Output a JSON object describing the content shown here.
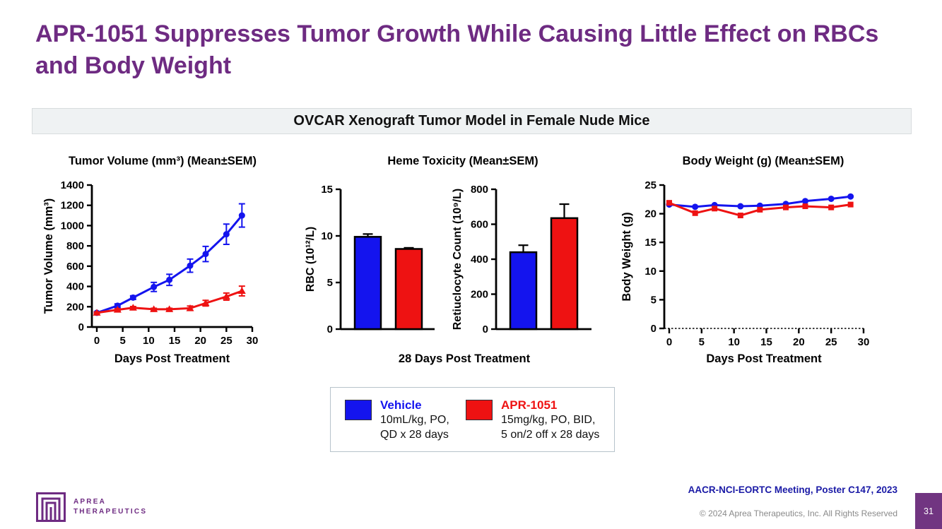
{
  "slide": {
    "title": "APR-1051 Suppresses Tumor Growth While Causing Little Effect on RBCs and Body Weight",
    "banner": "OVCAR Xenograft Tumor Model in Female Nude Mice",
    "page_number": "31"
  },
  "footer": {
    "meeting": "AACR-NCI-EORTC Meeting, Poster C147, 2023",
    "copyright": "© 2024 Aprea Therapeutics, Inc. All Rights Reserved",
    "logo_line1": "APREA",
    "logo_line2": "THERAPEUTICS"
  },
  "colors": {
    "title_purple": "#6E2B82",
    "vehicle_blue": "#1414EE",
    "apr_red": "#EE1212",
    "meeting_navy": "#1A1AA6",
    "page_box_purple": "#713581",
    "banner_bg": "#EFF2F3"
  },
  "legend": {
    "items": [
      {
        "name": "Vehicle",
        "color": "#1414EE",
        "lines": [
          "10mL/kg, PO,",
          "QD x 28 days"
        ]
      },
      {
        "name": "APR-1051",
        "color": "#EE1212",
        "lines": [
          "15mg/kg, PO, BID,",
          "5 on/2 off x 28 days"
        ]
      }
    ]
  },
  "chart_data": [
    {
      "type": "line",
      "title": "Tumor Volume (mm³) (Mean±SEM)",
      "xlabel": "Days Post Treatment",
      "ylabel": "Tumor Volume (mm³)",
      "xlim": [
        0,
        30
      ],
      "ylim": [
        0,
        1400
      ],
      "xticks": [
        0,
        5,
        10,
        15,
        20,
        25,
        30
      ],
      "yticks": [
        0,
        200,
        400,
        600,
        800,
        1000,
        1200,
        1400
      ],
      "x": [
        0,
        4,
        7,
        11,
        14,
        18,
        21,
        25,
        28
      ],
      "series": [
        {
          "name": "Vehicle",
          "marker": "circle",
          "color": "#1414EE",
          "values": [
            140,
            210,
            290,
            395,
            465,
            605,
            720,
            915,
            1100
          ],
          "sem": [
            10,
            18,
            18,
            45,
            55,
            65,
            75,
            100,
            115
          ]
        },
        {
          "name": "APR-1051",
          "marker": "triangle",
          "color": "#EE1212",
          "values": [
            140,
            170,
            190,
            175,
            175,
            185,
            235,
            300,
            355
          ],
          "sem": [
            8,
            10,
            12,
            10,
            10,
            22,
            28,
            35,
            48
          ]
        }
      ]
    },
    {
      "type": "bar",
      "title": "Heme Toxicity (Mean±SEM)",
      "xlabel": "28 Days Post Treatment",
      "subplots": [
        {
          "ylabel": "RBC (10¹²/L)",
          "ylim": [
            0,
            15
          ],
          "yticks": [
            0,
            5,
            10,
            15
          ],
          "bars": [
            {
              "name": "Vehicle",
              "value": 9.9,
              "sem": 0.3,
              "color": "#1414EE"
            },
            {
              "name": "APR-1051",
              "value": 8.6,
              "sem": 0.12,
              "color": "#EE1212"
            }
          ]
        },
        {
          "ylabel": "Retiuclocyte Count (10⁹/L)",
          "ylim": [
            0,
            800
          ],
          "yticks": [
            0,
            200,
            400,
            600,
            800
          ],
          "bars": [
            {
              "name": "Vehicle",
              "value": 440,
              "sem": 40,
              "color": "#1414EE"
            },
            {
              "name": "APR-1051",
              "value": 635,
              "sem": 80,
              "color": "#EE1212"
            }
          ]
        }
      ]
    },
    {
      "type": "line",
      "title": "Body Weight (g) (Mean±SEM)",
      "xlabel": "Days Post Treatment",
      "ylabel": "Body Weight (g)",
      "xlim": [
        0,
        30
      ],
      "ylim": [
        0,
        25
      ],
      "xticks": [
        0,
        5,
        10,
        15,
        20,
        25,
        30
      ],
      "yticks": [
        0,
        5,
        10,
        15,
        20,
        25
      ],
      "x": [
        0,
        4,
        7,
        11,
        14,
        18,
        21,
        25,
        28
      ],
      "series": [
        {
          "name": "Vehicle",
          "marker": "circle",
          "color": "#1414EE",
          "values": [
            21.6,
            21.2,
            21.5,
            21.3,
            21.4,
            21.7,
            22.2,
            22.6,
            23.0
          ],
          "sem": [
            0,
            0,
            0,
            0,
            0,
            0,
            0,
            0,
            0
          ]
        },
        {
          "name": "APR-1051",
          "marker": "square",
          "color": "#EE1212",
          "values": [
            21.9,
            20.1,
            20.9,
            19.7,
            20.7,
            21.1,
            21.3,
            21.1,
            21.6
          ],
          "sem": [
            0,
            0,
            0,
            0,
            0,
            0,
            0,
            0,
            0
          ]
        }
      ]
    }
  ]
}
